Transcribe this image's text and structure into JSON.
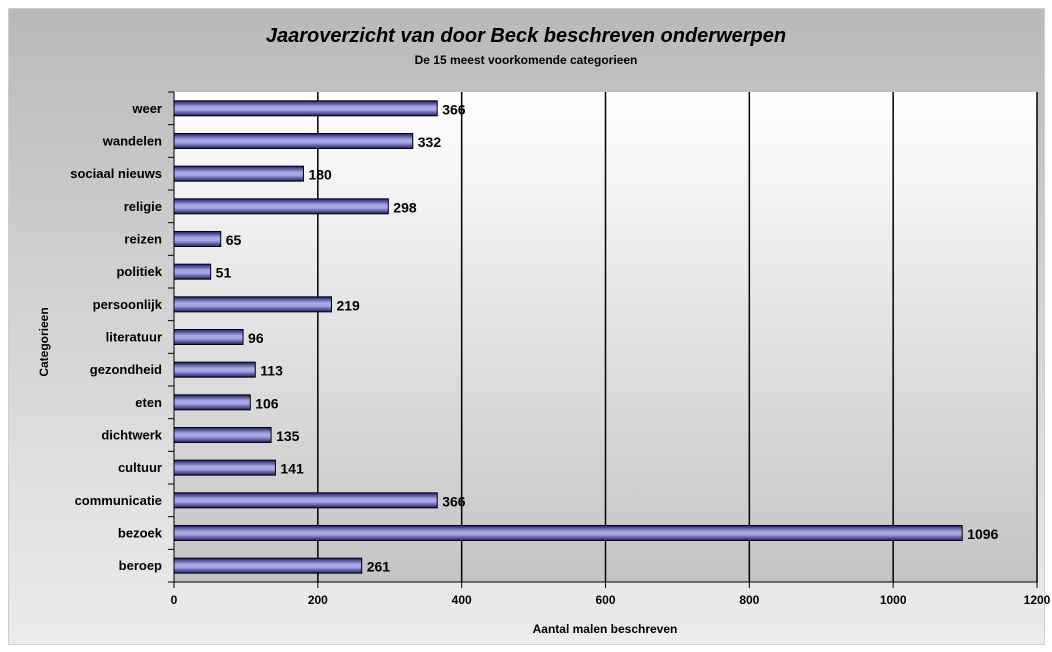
{
  "chart_data": {
    "type": "bar",
    "orientation": "horizontal",
    "title": "Jaaroverzicht van door Beck beschreven onderwerpen",
    "subtitle": "De 15 meest voorkomende categorieen",
    "xlabel": "Aantal malen beschreven",
    "ylabel": "Categorieen",
    "categories": [
      "weer",
      "wandelen",
      "sociaal nieuws",
      "religie",
      "reizen",
      "politiek",
      "persoonlijk",
      "literatuur",
      "gezondheid",
      "eten",
      "dichtwerk",
      "cultuur",
      "communicatie",
      "bezoek",
      "beroep"
    ],
    "values": [
      366,
      332,
      180,
      298,
      65,
      51,
      219,
      96,
      113,
      106,
      135,
      141,
      366,
      1096,
      261
    ],
    "xlim": [
      0,
      1200
    ],
    "xticks": [
      "0",
      "200",
      "400",
      "600",
      "800",
      "1000",
      "1200"
    ],
    "grid": "vertical major gridlines",
    "data_labels": true,
    "legend": "none",
    "colors": {
      "bar_fill_light": "#a8a8e6",
      "bar_fill_dark": "#1c1c64",
      "bar_stroke": "#000000",
      "gridline": "#000000",
      "plot_bg_top": "#ffffff",
      "plot_bg_bottom": "#c4c4c4",
      "frame_bg": "#c8c8c8"
    }
  }
}
